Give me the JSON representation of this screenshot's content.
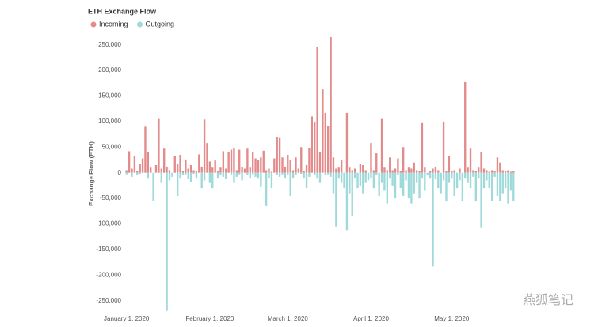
{
  "chart_data": {
    "type": "bar",
    "title": "ETH Exchange Flow",
    "y_label": "Exchange Flow (ETH)",
    "watermark": "燕狐笔记",
    "categories": [
      "January 1, 2020",
      null,
      null,
      null,
      null,
      null,
      null,
      null,
      null,
      null,
      null,
      null,
      null,
      null,
      null,
      null,
      null,
      null,
      null,
      null,
      null,
      null,
      null,
      null,
      null,
      null,
      null,
      null,
      null,
      null,
      null,
      "February 1, 2020",
      null,
      null,
      null,
      null,
      null,
      null,
      null,
      null,
      null,
      null,
      null,
      null,
      null,
      null,
      null,
      null,
      null,
      null,
      null,
      null,
      null,
      null,
      null,
      null,
      null,
      null,
      null,
      null,
      "March 1, 2020",
      null,
      null,
      null,
      null,
      null,
      null,
      null,
      null,
      null,
      null,
      null,
      null,
      null,
      null,
      null,
      null,
      null,
      null,
      null,
      null,
      null,
      null,
      null,
      null,
      null,
      null,
      null,
      null,
      null,
      null,
      "April 1, 2020",
      null,
      null,
      null,
      null,
      null,
      null,
      null,
      null,
      null,
      null,
      null,
      null,
      null,
      null,
      null,
      null,
      null,
      null,
      null,
      null,
      null,
      null,
      null,
      null,
      null,
      null,
      null,
      null,
      null,
      "May 1, 2020",
      null,
      null,
      null,
      null,
      null,
      null,
      null,
      null,
      null,
      null,
      null,
      null,
      null,
      null,
      null,
      null,
      null,
      null,
      null,
      null,
      null,
      null,
      null
    ],
    "series": [
      {
        "name": "Incoming",
        "color": "#e38b8b",
        "values": [
          5000,
          42000,
          8000,
          32000,
          3000,
          18000,
          28000,
          90000,
          40000,
          10000,
          0,
          15000,
          105000,
          8000,
          47000,
          12000,
          5000,
          0,
          33000,
          18000,
          35000,
          4000,
          26000,
          8000,
          15000,
          5000,
          3000,
          36000,
          12000,
          104000,
          58000,
          22000,
          10000,
          24000,
          3000,
          10000,
          42000,
          8000,
          40000,
          45000,
          48000,
          5000,
          45000,
          12000,
          8000,
          47000,
          10000,
          40000,
          28000,
          25000,
          30000,
          43000,
          5000,
          8000,
          2000,
          28000,
          70000,
          68000,
          30000,
          12000,
          35000,
          25000,
          5000,
          30000,
          8000,
          50000,
          3000,
          15000,
          48000,
          110000,
          100000,
          245000,
          40000,
          163000,
          117000,
          92000,
          265000,
          30000,
          8000,
          10000,
          25000,
          0,
          117000,
          10000,
          5000,
          8000,
          0,
          18000,
          15000,
          5000,
          0,
          58000,
          5000,
          38000,
          0,
          105000,
          10000,
          5000,
          30000,
          5000,
          8000,
          28000,
          3000,
          50000,
          5000,
          10000,
          8000,
          20000,
          5000,
          3000,
          97000,
          10000,
          0,
          3000,
          8000,
          12000,
          5000,
          0,
          100000,
          3000,
          33000,
          3000,
          5000,
          0,
          8000,
          0,
          177000,
          10000,
          47000,
          5000,
          3000,
          10000,
          40000,
          8000,
          5000,
          2000,
          5000,
          3000,
          30000,
          20000,
          5000,
          3000,
          5000,
          2000,
          3000
        ]
      },
      {
        "name": "Outgoing",
        "color": "#9fd9d9",
        "values": [
          -3000,
          0,
          -8000,
          0,
          -5000,
          -2000,
          0,
          0,
          -10000,
          0,
          -55000,
          0,
          0,
          -20000,
          0,
          -270000,
          -15000,
          -8000,
          0,
          -45000,
          -10000,
          -5000,
          -3000,
          -12000,
          -18000,
          -2000,
          -10000,
          0,
          -30000,
          -15000,
          0,
          -20000,
          -30000,
          0,
          -10000,
          -5000,
          -8000,
          -12000,
          0,
          -5000,
          -20000,
          -8000,
          -3000,
          -15000,
          0,
          -5000,
          -10000,
          -3000,
          -8000,
          -10000,
          -28000,
          0,
          -65000,
          -10000,
          -30000,
          0,
          -5000,
          -8000,
          -3000,
          -10000,
          -5000,
          -45000,
          -10000,
          -5000,
          0,
          -2000,
          -10000,
          -30000,
          -8000,
          0,
          -5000,
          -10000,
          -20000,
          0,
          -5000,
          -3000,
          -8000,
          -40000,
          -105000,
          -10000,
          -20000,
          -30000,
          -112000,
          -40000,
          -85000,
          -10000,
          -30000,
          -25000,
          -40000,
          -20000,
          -15000,
          -10000,
          -30000,
          -5000,
          -45000,
          -20000,
          -35000,
          -60000,
          -10000,
          -25000,
          -50000,
          -5000,
          -30000,
          -45000,
          -15000,
          -50000,
          -60000,
          -40000,
          -20000,
          -50000,
          -10000,
          -35000,
          -5000,
          -10000,
          -183000,
          -12000,
          -30000,
          -40000,
          -15000,
          -55000,
          -20000,
          -10000,
          -45000,
          -30000,
          -15000,
          -55000,
          -10000,
          -20000,
          -30000,
          -8000,
          -55000,
          -10000,
          -108000,
          -30000,
          -15000,
          -30000,
          -55000,
          -8000,
          -45000,
          -55000,
          -40000,
          -30000,
          -60000,
          -35000,
          -55000
        ]
      }
    ],
    "ylim": [
      -272000,
      268000
    ],
    "yticks": [
      {
        "value": -250000,
        "label": "-250,000"
      },
      {
        "value": -200000,
        "label": "-200,000"
      },
      {
        "value": -150000,
        "label": "-150,000"
      },
      {
        "value": -100000,
        "label": "-100,000"
      },
      {
        "value": -50000,
        "label": "-50,000"
      },
      0,
      {
        "value": 50000,
        "label": "50,000"
      },
      {
        "value": 100000,
        "label": "100,000"
      },
      {
        "value": 150000,
        "label": "150,000"
      },
      {
        "value": 200000,
        "label": "200,000"
      },
      {
        "value": 250000,
        "label": "250,000"
      }
    ],
    "grid": false
  }
}
